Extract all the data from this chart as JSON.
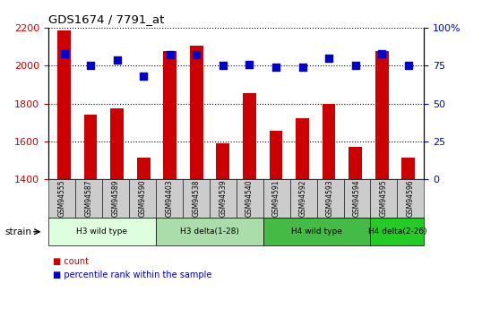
{
  "title": "GDS1674 / 7791_at",
  "samples": [
    "GSM94555",
    "GSM94587",
    "GSM94589",
    "GSM94590",
    "GSM94403",
    "GSM94538",
    "GSM94539",
    "GSM94540",
    "GSM94591",
    "GSM94592",
    "GSM94593",
    "GSM94594",
    "GSM94595",
    "GSM94596"
  ],
  "counts": [
    2185,
    1740,
    1775,
    1515,
    2075,
    2105,
    1590,
    1855,
    1655,
    1720,
    1800,
    1570,
    2075,
    1515
  ],
  "percentiles": [
    83,
    75,
    79,
    68,
    82,
    82,
    75,
    76,
    74,
    74,
    80,
    75,
    83,
    75
  ],
  "ylim_left": [
    1400,
    2200
  ],
  "ylim_right": [
    0,
    100
  ],
  "yticks_left": [
    1400,
    1600,
    1800,
    2000,
    2200
  ],
  "yticks_right": [
    0,
    25,
    50,
    75,
    100
  ],
  "bar_color": "#cc0000",
  "dot_color": "#0000cc",
  "grid_color": "#000000",
  "strain_groups": [
    {
      "label": "H3 wild type",
      "indices": [
        0,
        1,
        2,
        3
      ],
      "color": "#ddffdd"
    },
    {
      "label": "H3 delta(1-28)",
      "indices": [
        4,
        5,
        6,
        7
      ],
      "color": "#aaddaa"
    },
    {
      "label": "H4 wild type",
      "indices": [
        8,
        9,
        10,
        11
      ],
      "color": "#44bb44"
    },
    {
      "label": "H4 delta(2-26)",
      "indices": [
        12,
        13
      ],
      "color": "#22cc22"
    }
  ],
  "left_color": "#cc0000",
  "right_color": "#0000cc",
  "bar_width": 0.5,
  "dotsize": 28,
  "background_color": "#ffffff",
  "tick_bg": "#cccccc",
  "bar_bottom": 1400
}
